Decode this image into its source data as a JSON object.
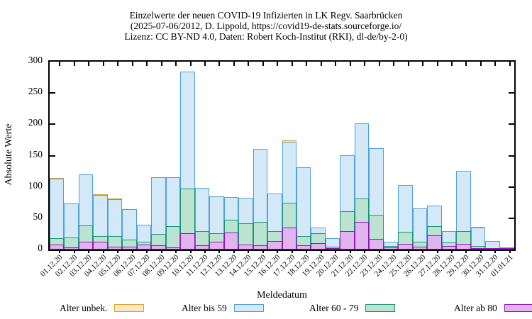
{
  "title": {
    "line1": "Einzelwerte der neuen COVID-19 Infizierten in LK Regv. Saarbrücken",
    "line2": "(2025-07-06/2012, D. Lippold, https://covid19-de-stats.sourceforge.io/",
    "line3": "Lizenz: CC BY-ND 4.0, Daten: Robert Koch-Institut (RKI), dl-de/by-2-0)"
  },
  "chart_data": {
    "type": "bar",
    "bar_mode": "overlay-cumulative",
    "title": "Einzelwerte der neuen COVID-19 Infizierten in LK Regv. Saarbrücken",
    "xlabel": "Meldedatum",
    "ylabel": "Absolute Werte",
    "ylim": [
      0,
      300
    ],
    "yticks": [
      0,
      50,
      100,
      150,
      200,
      250,
      300
    ],
    "grid": false,
    "legend_position": "bottom",
    "categories": [
      "01.12.20",
      "02.12.20",
      "03.12.20",
      "04.12.20",
      "05.12.20",
      "06.12.20",
      "07.12.20",
      "08.12.20",
      "09.12.20",
      "10.12.20",
      "11.12.20",
      "12.12.20",
      "13.12.20",
      "14.12.20",
      "15.12.20",
      "16.12.20",
      "17.12.20",
      "18.12.20",
      "19.12.20",
      "20.12.20",
      "21.12.20",
      "22.12.20",
      "23.12.20",
      "24.12.20",
      "25.12.20",
      "26.12.20",
      "27.12.20",
      "28.12.20",
      "29.12.20",
      "30.12.20",
      "31.12.20",
      "01.01.21"
    ],
    "series": [
      {
        "name": "Alter unbek.",
        "border": "#dfa32e",
        "fill": "#fae7c4",
        "values": [
          114,
          74,
          120,
          88,
          81,
          64,
          40,
          115,
          115,
          284,
          98,
          85,
          84,
          83,
          161,
          89,
          174,
          131,
          35,
          18,
          151,
          202,
          162,
          12,
          103,
          66,
          70,
          30,
          126,
          36,
          14,
          3
        ]
      },
      {
        "name": "Alter bis 59",
        "border": "#52a0d8",
        "fill": "#d4e9f8",
        "values": [
          113,
          74,
          120,
          87,
          80,
          64,
          40,
          115,
          115,
          284,
          98,
          85,
          84,
          83,
          161,
          89,
          172,
          131,
          35,
          18,
          151,
          202,
          162,
          12,
          103,
          66,
          70,
          30,
          126,
          35,
          14,
          3
        ]
      },
      {
        "name": "Alter 60 - 79",
        "border": "#18987a",
        "fill": "#bce2d2",
        "values": [
          18,
          19,
          38,
          22,
          21,
          16,
          13,
          25,
          37,
          97,
          30,
          26,
          47,
          42,
          44,
          30,
          75,
          21,
          26,
          5,
          61,
          82,
          56,
          6,
          28,
          13,
          37,
          11,
          30,
          6,
          2,
          2
        ]
      },
      {
        "name": "Alter ab 80",
        "border": "#9119b8",
        "fill": "#e2b4ef",
        "values": [
          8,
          3,
          13,
          12,
          5,
          5,
          8,
          7,
          3,
          26,
          7,
          13,
          27,
          8,
          7,
          14,
          35,
          7,
          10,
          2,
          29,
          44,
          17,
          3,
          9,
          5,
          23,
          6,
          9,
          2,
          1,
          2
        ]
      }
    ]
  }
}
